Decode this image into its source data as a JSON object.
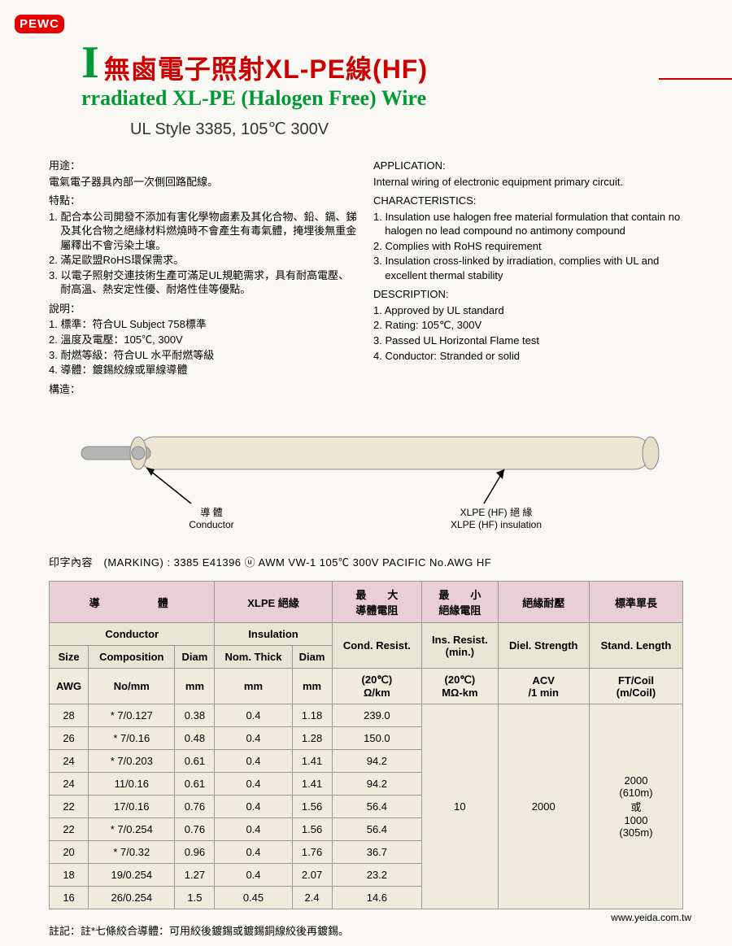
{
  "logo": "PEWC",
  "title_cn": "無鹵電子照射XL-PE線(HF)",
  "title_i": "I",
  "title_en": "rradiated XL-PE (Halogen Free) Wire",
  "subtitle": "UL Style 3385, 105℃ 300V",
  "cn": {
    "app_label": "用途：",
    "app_text": "電氣電子器具內部一次側回路配線。",
    "char_label": "特點：",
    "char_items": [
      "1. 配合本公司開發不添加有害化學物鹵素及其化合物、鉛、鎘、銻及其化合物之絕緣材料燃燒時不會產生有毒氣體，掩埋後無重金屬釋出不會污染土壤。",
      "2. 滿足歐盟RoHS環保需求。",
      "3. 以電子照射交連技術生產可滿足UL規範需求，具有耐高電壓、耐高溫、熱安定性優、耐烙性佳等優點。"
    ],
    "desc_label": "說明：",
    "desc_items": [
      "1. 標準：符合UL Subject 758標準",
      "2. 溫度及電壓：105℃, 300V",
      "3. 耐燃等級：符合UL 水平耐燃等級",
      "4. 導體：鍍錫絞線或單線導體"
    ],
    "struct_label": "構造："
  },
  "en": {
    "app_label": "APPLICATION:",
    "app_text": "Internal wiring of electronic equipment primary circuit.",
    "char_label": "CHARACTERISTICS:",
    "char_items": [
      "1. Insulation use halogen free material formulation that contain no halogen no lead compound no antimony compound",
      "2. Complies with RoHS requirement",
      "3. Insulation cross-linked by irradiation, complies with UL and excellent thermal stability"
    ],
    "desc_label": "DESCRIPTION:",
    "desc_items": [
      "1. Approved by UL standard",
      "2. Rating: 105℃, 300V",
      "3. Passed UL Horizontal Flame test",
      "4. Conductor: Stranded or solid"
    ]
  },
  "diagram": {
    "conductor_cn": "導 體",
    "conductor_en": "Conductor",
    "insul_cn": "XLPE (HF) 絕 緣",
    "insul_en": "XLPE (HF) insulation",
    "conductor_color": "#b5b5b5",
    "insul_color": "#f0e6d6",
    "stroke": "#888"
  },
  "marking_label": "印字內容　(MARKING) : ",
  "marking_text": "3385 E41396 ⓤ AWM VW-1 105℃ 300V PACIFIC No.AWG HF",
  "table": {
    "h_conductor_cn": "導　　　體",
    "h_insul_cn": "XLPE 絕緣",
    "h_condres_cn1": "最　　大",
    "h_condres_cn2": "導體電阻",
    "h_insres_cn1": "最　　小",
    "h_insres_cn2": "絕緣電阻",
    "h_diel_cn": "絕緣耐壓",
    "h_len_cn": "標準單長",
    "h_conductor_en": "Conductor",
    "h_insul_en": "Insulation",
    "h_condres_en": "Cond. Resist.",
    "h_insres_en1": "Ins. Resist.",
    "h_insres_en2": "(min.)",
    "h_diel_en": "Diel. Strength",
    "h_len_en": "Stand. Length",
    "sub_size": "Size",
    "sub_comp": "Composition",
    "sub_diam": "Diam",
    "sub_nomthick": "Nom. Thick",
    "u_awg": "AWG",
    "u_nomm": "No/mm",
    "u_mm": "mm",
    "u_condres1": "(20℃)",
    "u_condres2": "Ω/km",
    "u_insres1": "(20℃)",
    "u_insres2": "MΩ-km",
    "u_diel1": "ACV",
    "u_diel2": "/1 min",
    "u_len1": "FT/Coil",
    "u_len2": "(m/Coil)",
    "ins_res_val": "10",
    "diel_val": "2000",
    "len_val": [
      "2000",
      "(610m)",
      "或",
      "1000",
      "(305m)"
    ],
    "rows": [
      {
        "awg": "28",
        "comp": "* 7/0.127",
        "diam": "0.38",
        "thick": "0.4",
        "idiam": "1.18",
        "res": "239.0"
      },
      {
        "awg": "26",
        "comp": "* 7/0.16",
        "diam": "0.48",
        "thick": "0.4",
        "idiam": "1.28",
        "res": "150.0"
      },
      {
        "awg": "24",
        "comp": "* 7/0.203",
        "diam": "0.61",
        "thick": "0.4",
        "idiam": "1.41",
        "res": "94.2"
      },
      {
        "awg": "24",
        "comp": "11/0.16",
        "diam": "0.61",
        "thick": "0.4",
        "idiam": "1.41",
        "res": "94.2"
      },
      {
        "awg": "22",
        "comp": "17/0.16",
        "diam": "0.76",
        "thick": "0.4",
        "idiam": "1.56",
        "res": "56.4"
      },
      {
        "awg": "22",
        "comp": "* 7/0.254",
        "diam": "0.76",
        "thick": "0.4",
        "idiam": "1.56",
        "res": "56.4"
      },
      {
        "awg": "20",
        "comp": "* 7/0.32",
        "diam": "0.96",
        "thick": "0.4",
        "idiam": "1.76",
        "res": "36.7"
      },
      {
        "awg": "18",
        "comp": "19/0.254",
        "diam": "1.27",
        "thick": "0.4",
        "idiam": "2.07",
        "res": "23.2"
      },
      {
        "awg": "16",
        "comp": "26/0.254",
        "diam": "1.5",
        "thick": "0.45",
        "idiam": "2.4",
        "res": "14.6"
      }
    ]
  },
  "footnote": "註記：註*七條絞合導體：可用絞後鍍錫或鍍錫銅線絞後再鍍錫。",
  "website": "www.yeida.com.tw"
}
